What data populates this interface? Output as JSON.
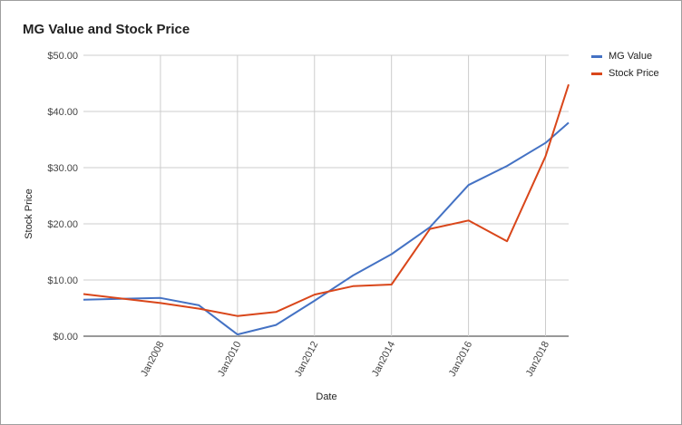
{
  "chart_data": {
    "type": "line",
    "title": "MG Value and Stock Price",
    "xlabel": "Date",
    "ylabel": "Stock Price",
    "ylim": [
      0,
      50
    ],
    "y_ticks": [
      "$0.00",
      "$10.00",
      "$20.00",
      "$30.00",
      "$40.00",
      "$50.00"
    ],
    "y_tick_values": [
      0,
      10,
      20,
      30,
      40,
      50
    ],
    "x_ticks": [
      "Jan2008",
      "Jan2010",
      "Jan2012",
      "Jan2014",
      "Jan2016",
      "Jan2018"
    ],
    "x_tick_values": [
      2008,
      2010,
      2012,
      2014,
      2016,
      2018
    ],
    "xlim": [
      2006,
      2018.6
    ],
    "grid": true,
    "legend_position": "right",
    "series": [
      {
        "name": "MG Value",
        "color": "#4472c4",
        "x": [
          2006,
          2008,
          2009,
          2010,
          2011,
          2012,
          2013,
          2014,
          2015,
          2016,
          2017,
          2018,
          2018.6
        ],
        "values": [
          6.5,
          6.8,
          5.5,
          0.3,
          2.0,
          6.3,
          10.8,
          14.6,
          19.4,
          26.9,
          30.3,
          34.4,
          38.0
        ]
      },
      {
        "name": "Stock Price",
        "color": "#d9461a",
        "x": [
          2006,
          2008,
          2009,
          2010,
          2011,
          2012,
          2013,
          2014,
          2015,
          2016,
          2017,
          2018,
          2018.6
        ],
        "values": [
          7.5,
          5.9,
          4.9,
          3.6,
          4.3,
          7.4,
          8.9,
          9.2,
          19.1,
          20.6,
          16.9,
          32.0,
          44.8
        ]
      }
    ]
  }
}
